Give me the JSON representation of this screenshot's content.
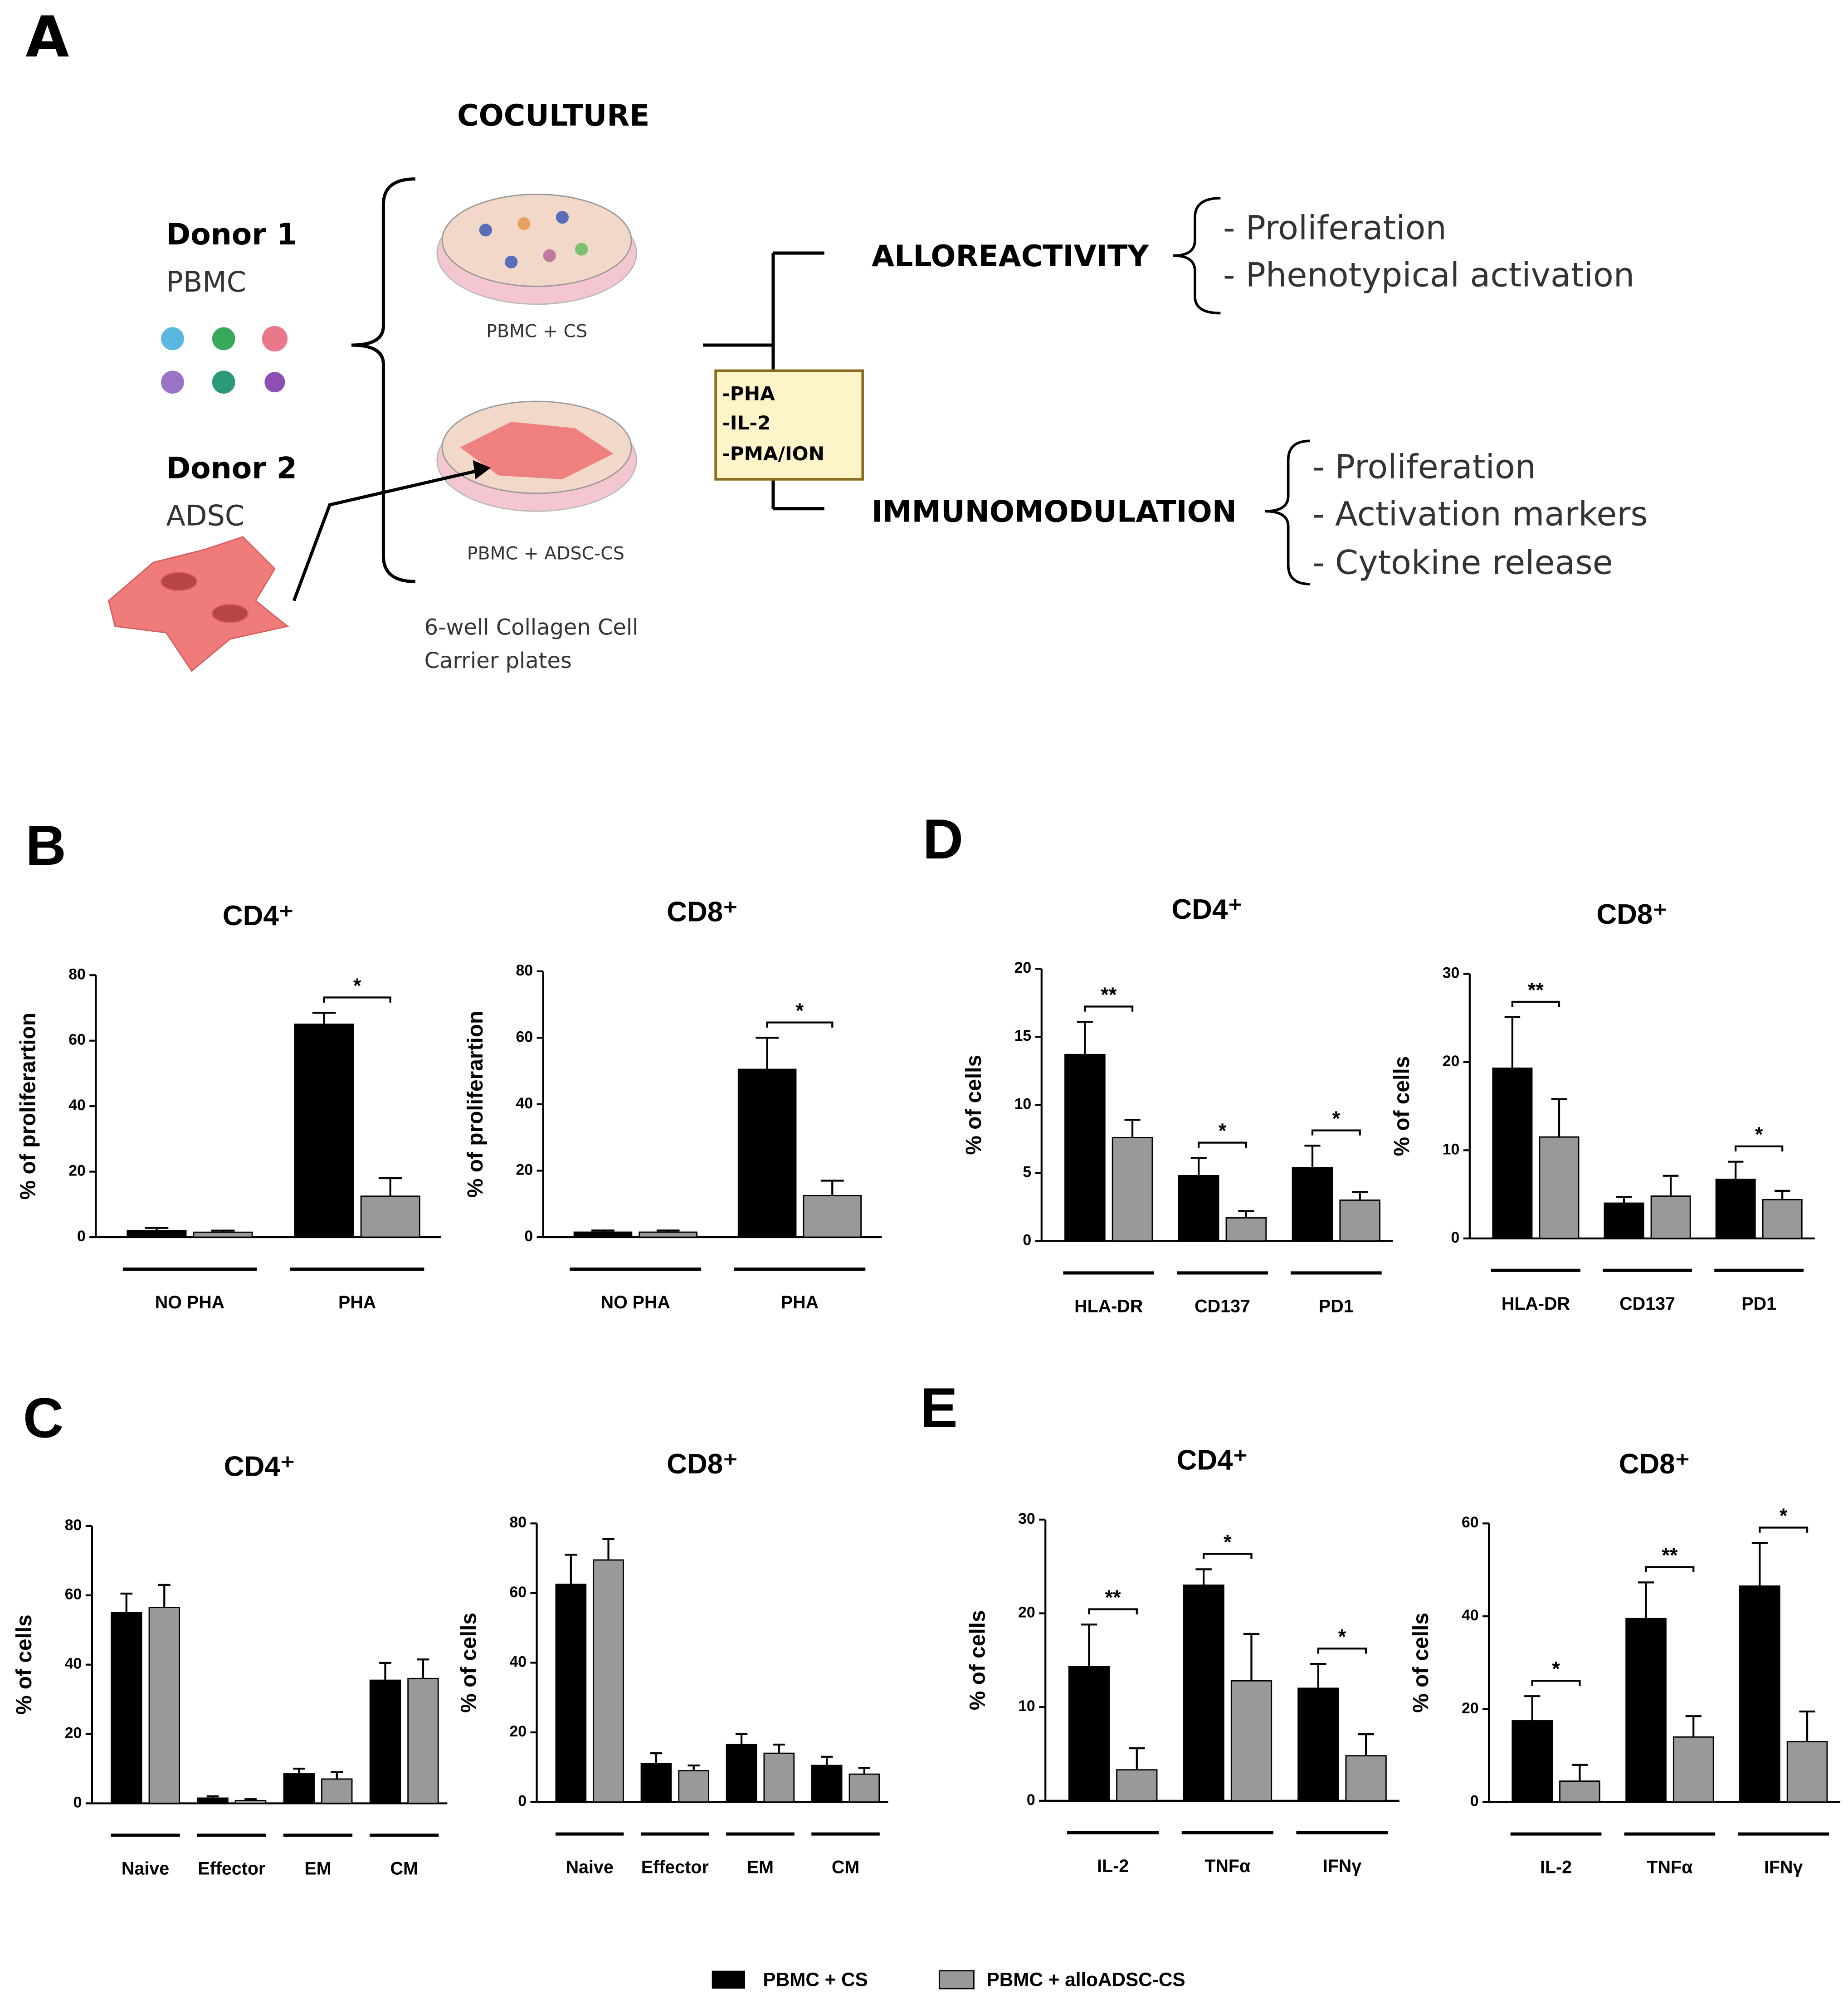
{
  "diagram": {
    "panel": "A",
    "heading": "COCULTURE",
    "donor1": {
      "name": "Donor 1",
      "cells": "PBMC"
    },
    "donor2": {
      "name": "Donor 2",
      "cells": "ADSC"
    },
    "dish1": "PBMC + CS",
    "dish2": "PBMC + ADSC-CS",
    "plates": [
      "6-well Collagen Cell",
      "Carrier plates"
    ],
    "stimuli": [
      "-PHA",
      "-IL-2",
      "-PMA/ION"
    ],
    "branches": [
      {
        "name": "ALLOREACTIVITY",
        "items": [
          "- Proliferation",
          "- Phenotypical activation"
        ]
      },
      {
        "name": "IMMUNOMODULATION",
        "items": [
          "- Proliferation",
          "- Activation markers",
          "- Cytokine release"
        ]
      }
    ]
  },
  "legend": [
    {
      "name": "PBMC + CS",
      "color": "#000000"
    },
    {
      "name": "PBMC + alloADSC-CS",
      "color": "#999999"
    }
  ],
  "chart_data": [
    {
      "type": "bar",
      "panel": "B",
      "title": "CD4⁺",
      "y_label": "% of proliferartion",
      "categories": [
        "NO PHA",
        "PHA"
      ],
      "series": [
        {
          "values": [
            2,
            65
          ],
          "errors": [
            0.8,
            3.5
          ]
        },
        {
          "values": [
            1.5,
            12.5
          ],
          "errors": [
            0.5,
            5.5
          ]
        }
      ],
      "significance": [
        null,
        "*"
      ],
      "ylim": [
        0,
        80
      ],
      "yticks": [
        0,
        20,
        40,
        60,
        80
      ]
    },
    {
      "type": "bar",
      "title": "CD8⁺",
      "y_label": "% of proliferartion",
      "categories": [
        "NO PHA",
        "PHA"
      ],
      "series": [
        {
          "values": [
            1.5,
            50.5
          ],
          "errors": [
            0.5,
            9.5
          ]
        },
        {
          "values": [
            1.5,
            12.5
          ],
          "errors": [
            0.5,
            4.5
          ]
        }
      ],
      "significance": [
        null,
        "*"
      ],
      "ylim": [
        0,
        80
      ],
      "yticks": [
        0,
        20,
        40,
        60,
        80
      ]
    },
    {
      "type": "bar",
      "panel": "D",
      "title": "CD4⁺",
      "y_label": "% of cells",
      "categories": [
        "HLA-DR",
        "CD137",
        "PD1"
      ],
      "series": [
        {
          "values": [
            13.7,
            4.8,
            5.4
          ],
          "errors": [
            2.4,
            1.3,
            1.6
          ]
        },
        {
          "values": [
            7.6,
            1.7,
            3
          ],
          "errors": [
            1.3,
            0.5,
            0.6
          ]
        }
      ],
      "significance": [
        "**",
        "*",
        "*"
      ],
      "ylim": [
        0,
        20
      ],
      "yticks": [
        0,
        5,
        10,
        15,
        20
      ]
    },
    {
      "type": "bar",
      "title": "CD8⁺",
      "y_label": "% of cells",
      "categories": [
        "HLA-DR",
        "CD137",
        "PD1"
      ],
      "series": [
        {
          "values": [
            19.3,
            4,
            6.7
          ],
          "errors": [
            5.8,
            0.7,
            2
          ]
        },
        {
          "values": [
            11.5,
            4.8,
            4.4
          ],
          "errors": [
            4.3,
            2.3,
            1
          ]
        }
      ],
      "significance": [
        "**",
        null,
        "*"
      ],
      "ylim": [
        0,
        30
      ],
      "yticks": [
        0,
        10,
        20,
        30
      ]
    },
    {
      "type": "bar",
      "panel": "C",
      "title": "CD4⁺",
      "y_label": "% of cells",
      "categories": [
        "Naive",
        "Effector",
        "EM",
        "CM"
      ],
      "series": [
        {
          "values": [
            55,
            1.5,
            8.5,
            35.5
          ],
          "errors": [
            5.5,
            0.5,
            1.5,
            5
          ]
        },
        {
          "values": [
            56.5,
            0.8,
            7,
            36
          ],
          "errors": [
            6.5,
            0.4,
            2,
            5.5
          ]
        }
      ],
      "significance": [
        null,
        null,
        null,
        null
      ],
      "ylim": [
        0,
        80
      ],
      "yticks": [
        0,
        20,
        40,
        60,
        80
      ]
    },
    {
      "type": "bar",
      "title": "CD8⁺",
      "y_label": "% of cells",
      "categories": [
        "Naive",
        "Effector",
        "EM",
        "CM"
      ],
      "series": [
        {
          "values": [
            62.5,
            11,
            16.5,
            10.5
          ],
          "errors": [
            8.5,
            3,
            3,
            2.5
          ]
        },
        {
          "values": [
            69.5,
            9,
            14,
            8
          ],
          "errors": [
            6,
            1.5,
            2.5,
            1.8
          ]
        }
      ],
      "significance": [
        null,
        null,
        null,
        null
      ],
      "ylim": [
        0,
        80
      ],
      "yticks": [
        0,
        20,
        40,
        60,
        80
      ]
    },
    {
      "type": "bar",
      "panel": "E",
      "title": "CD4⁺",
      "y_label": "% of cells",
      "categories": [
        "IL-2",
        "TNFα",
        "IFNγ"
      ],
      "series": [
        {
          "values": [
            14.3,
            23,
            12
          ],
          "errors": [
            4.5,
            1.7,
            2.6
          ]
        },
        {
          "values": [
            3.3,
            12.8,
            4.8
          ],
          "errors": [
            2.3,
            5,
            2.3
          ]
        }
      ],
      "significance": [
        "**",
        "*",
        "*"
      ],
      "ylim": [
        0,
        30
      ],
      "yticks": [
        0,
        10,
        20,
        30
      ]
    },
    {
      "type": "bar",
      "title": "CD8⁺",
      "y_label": "% of cells",
      "categories": [
        "IL-2",
        "TNFα",
        "IFNγ"
      ],
      "series": [
        {
          "values": [
            17.5,
            39.5,
            46.5
          ],
          "errors": [
            5.3,
            7.8,
            9.3
          ]
        },
        {
          "values": [
            4.5,
            14,
            13
          ],
          "errors": [
            3.5,
            4.5,
            6.5
          ]
        }
      ],
      "significance": [
        "*",
        "**",
        "*"
      ],
      "ylim": [
        0,
        60
      ],
      "yticks": [
        0,
        20,
        40,
        60
      ]
    }
  ]
}
